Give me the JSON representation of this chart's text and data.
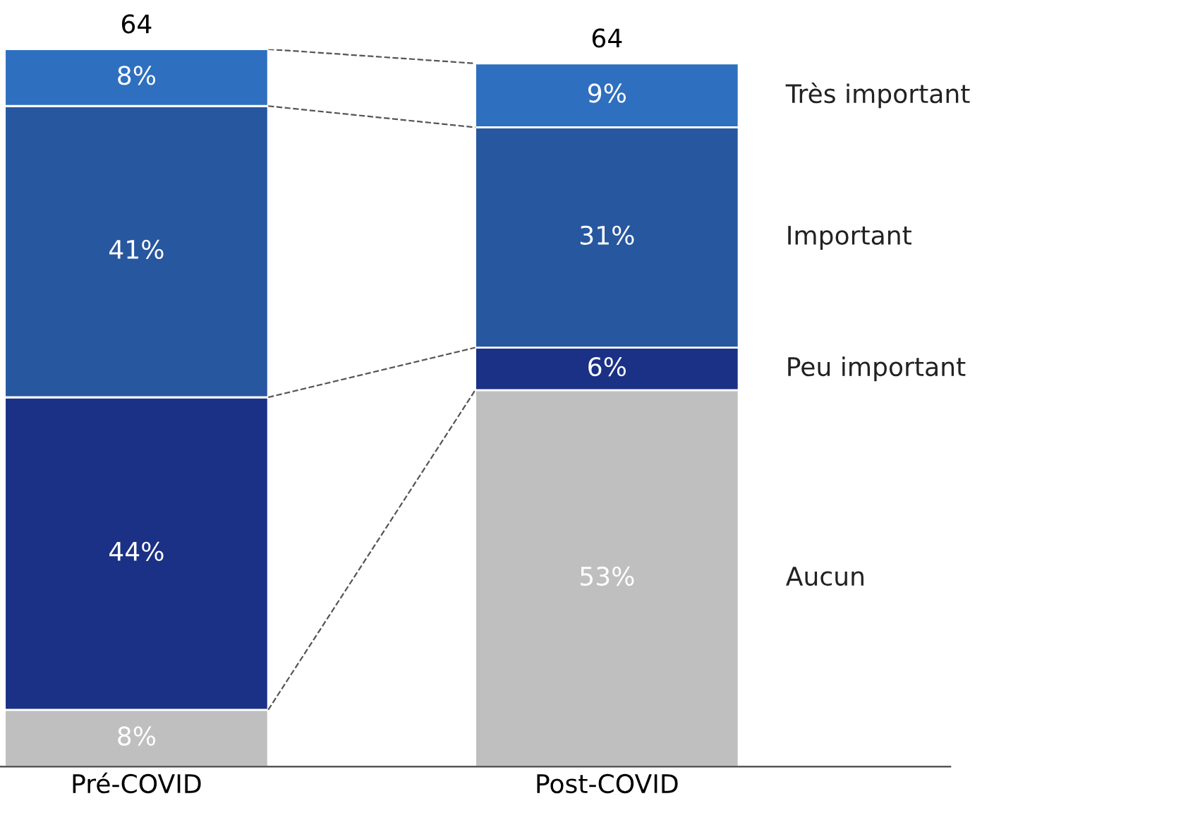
{
  "chart_data": {
    "type": "bar",
    "stacked": true,
    "categories": [
      "Pré-COVID",
      "Post-COVID"
    ],
    "series": [
      {
        "name": "Aucun",
        "color": "#bfbfbf",
        "values": [
          8,
          53
        ],
        "value_labels": [
          "8%",
          "53%"
        ]
      },
      {
        "name": "Peu important",
        "color": "#1a3185",
        "values": [
          44,
          6
        ],
        "value_labels": [
          "44%",
          "6%"
        ]
      },
      {
        "name": "Important",
        "color": "#27579f",
        "values": [
          41,
          31
        ],
        "value_labels": [
          "41%",
          "31%"
        ]
      },
      {
        "name": "Très important",
        "color": "#2e6fbf",
        "values": [
          8,
          9
        ],
        "value_labels": [
          "8%",
          "9%"
        ]
      }
    ],
    "annotations": [
      "64",
      "64"
    ],
    "legend": false,
    "grid": false,
    "tick_labels": "x"
  }
}
